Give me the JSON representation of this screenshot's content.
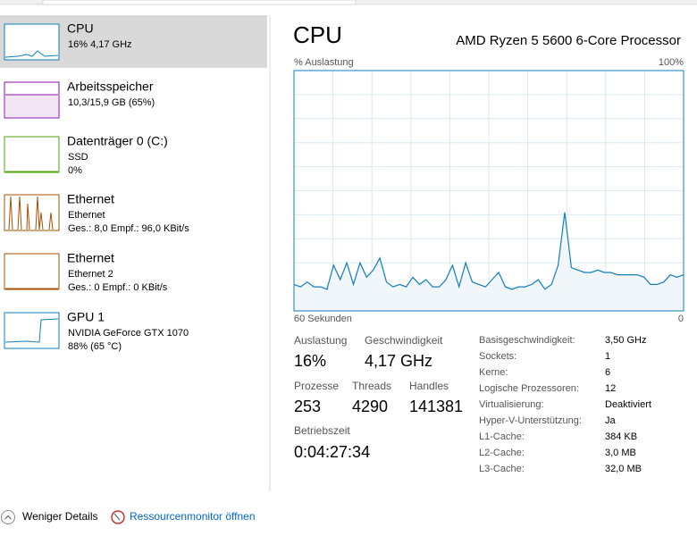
{
  "sidebar": {
    "items": [
      {
        "title": "CPU",
        "lines": [
          "16% 4,17 GHz"
        ]
      },
      {
        "title": "Arbeitsspeicher",
        "lines": [
          "10,3/15,9 GB (65%)"
        ]
      },
      {
        "title": "Datenträger 0 (C:)",
        "lines": [
          "SSD",
          "0%"
        ]
      },
      {
        "title": "Ethernet",
        "lines": [
          "Ethernet",
          "Ges.: 8,0 Empf.: 96,0 KBit/s"
        ]
      },
      {
        "title": "Ethernet",
        "lines": [
          "Ethernet 2",
          "Ges.: 0 Empf.: 0 KBit/s"
        ]
      },
      {
        "title": "GPU 1",
        "lines": [
          "NVIDIA GeForce GTX 1070",
          "88% (65 °C)"
        ]
      }
    ]
  },
  "header": {
    "title": "CPU",
    "processor": "AMD Ryzen 5 5600 6-Core Processor"
  },
  "graph": {
    "y_label": "% Auslastung",
    "y_max_label": "100%",
    "x_left_label": "60 Sekunden",
    "x_right_label": "0",
    "ylim": [
      0,
      100
    ],
    "color": "#117dbb",
    "values": [
      11,
      10,
      12,
      10,
      10,
      9,
      19,
      13,
      20,
      11,
      20,
      14,
      17,
      22,
      12,
      10,
      11,
      10,
      14,
      11,
      13,
      10,
      10,
      13,
      19,
      10,
      20,
      12,
      11,
      10,
      13,
      16,
      10,
      9,
      10,
      10,
      11,
      13,
      9,
      11,
      19,
      41,
      18,
      17,
      16,
      16,
      17,
      16,
      16,
      15,
      15,
      15,
      15,
      14,
      11,
      11,
      12,
      15,
      14,
      15
    ]
  },
  "stats": {
    "big": [
      [
        {
          "label": "Auslastung",
          "value": "16%"
        },
        {
          "label": "Geschwindigkeit",
          "value": "4,17 GHz"
        }
      ],
      [
        {
          "label": "Prozesse",
          "value": "253"
        },
        {
          "label": "Threads",
          "value": "4290"
        },
        {
          "label": "Handles",
          "value": "141381"
        }
      ],
      [
        {
          "label": "Betriebszeit",
          "value": "0:04:27:34"
        }
      ]
    ],
    "details": [
      [
        "Basisgeschwindigkeit:",
        "3,50 GHz"
      ],
      [
        "Sockets:",
        "1"
      ],
      [
        "Kerne:",
        "6"
      ],
      [
        "Logische Prozessoren:",
        "12"
      ],
      [
        "Virtualisierung:",
        "Deaktiviert"
      ],
      [
        "Hyper-V-Unterstützung:",
        "Ja"
      ],
      [
        "L1-Cache:",
        "384 KB"
      ],
      [
        "L2-Cache:",
        "3,0 MB"
      ],
      [
        "L3-Cache:",
        "32,0 MB"
      ]
    ]
  },
  "footer": {
    "less_details": "Weniger Details",
    "resource_monitor": "Ressourcenmonitor öffnen"
  }
}
